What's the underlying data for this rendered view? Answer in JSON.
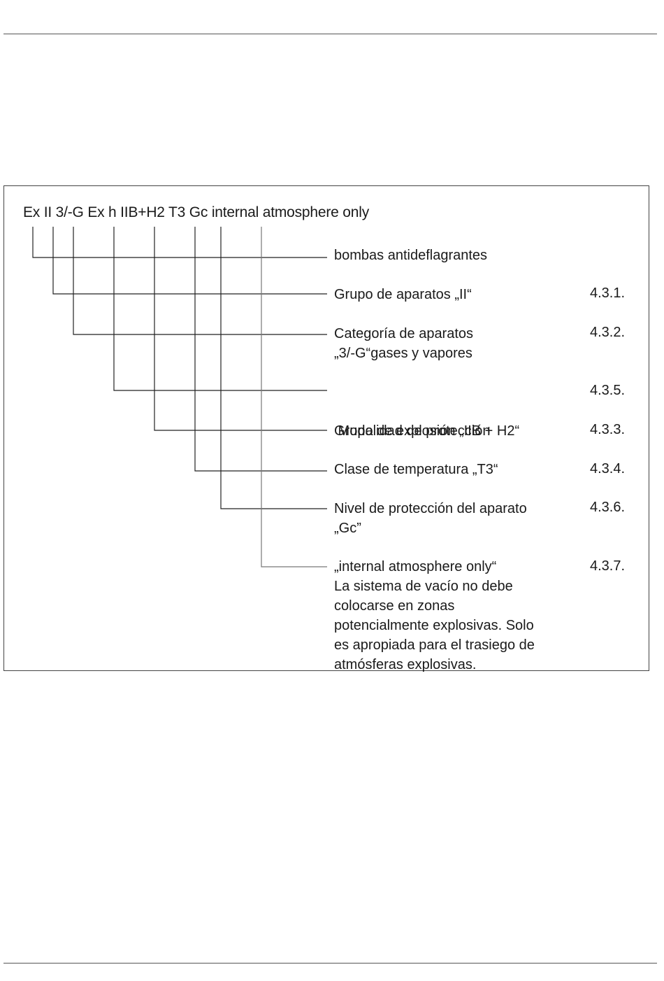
{
  "marking": "Ex II 3/-G Ex h IIB+H2 T3 Gc internal atmosphere only",
  "items": [
    {
      "label_lines": [
        "bombas antideflagrantes"
      ],
      "ref": ""
    },
    {
      "label_lines": [
        "Grupo de aparatos „II“"
      ],
      "ref": "4.3.1."
    },
    {
      "label_lines": [
        "Categoría de aparatos",
        "„3/-G“gases y vapores"
      ],
      "ref": "4.3.2."
    },
    {
      "label_lines": [
        " Modalidad de protección"
      ],
      "ref": "4.3.5."
    },
    {
      "label_lines": [
        "Grupo de explosión „IIB + H2“"
      ],
      "ref": "4.3.3."
    },
    {
      "label_lines": [
        "Clase de temperatura „T3“"
      ],
      "ref": "4.3.4."
    },
    {
      "label_lines": [
        "Nivel de protección del aparato",
        "„Gc”"
      ],
      "ref": "4.3.6."
    },
    {
      "label_lines": [
        "„internal atmosphere only“",
        "La sistema de vacío no debe",
        "colocarse en zonas",
        "potencialmente explosivas. Solo",
        "es apropiada para el trasiego de",
        "atmósferas explosivas."
      ],
      "ref": "4.3.7."
    }
  ]
}
